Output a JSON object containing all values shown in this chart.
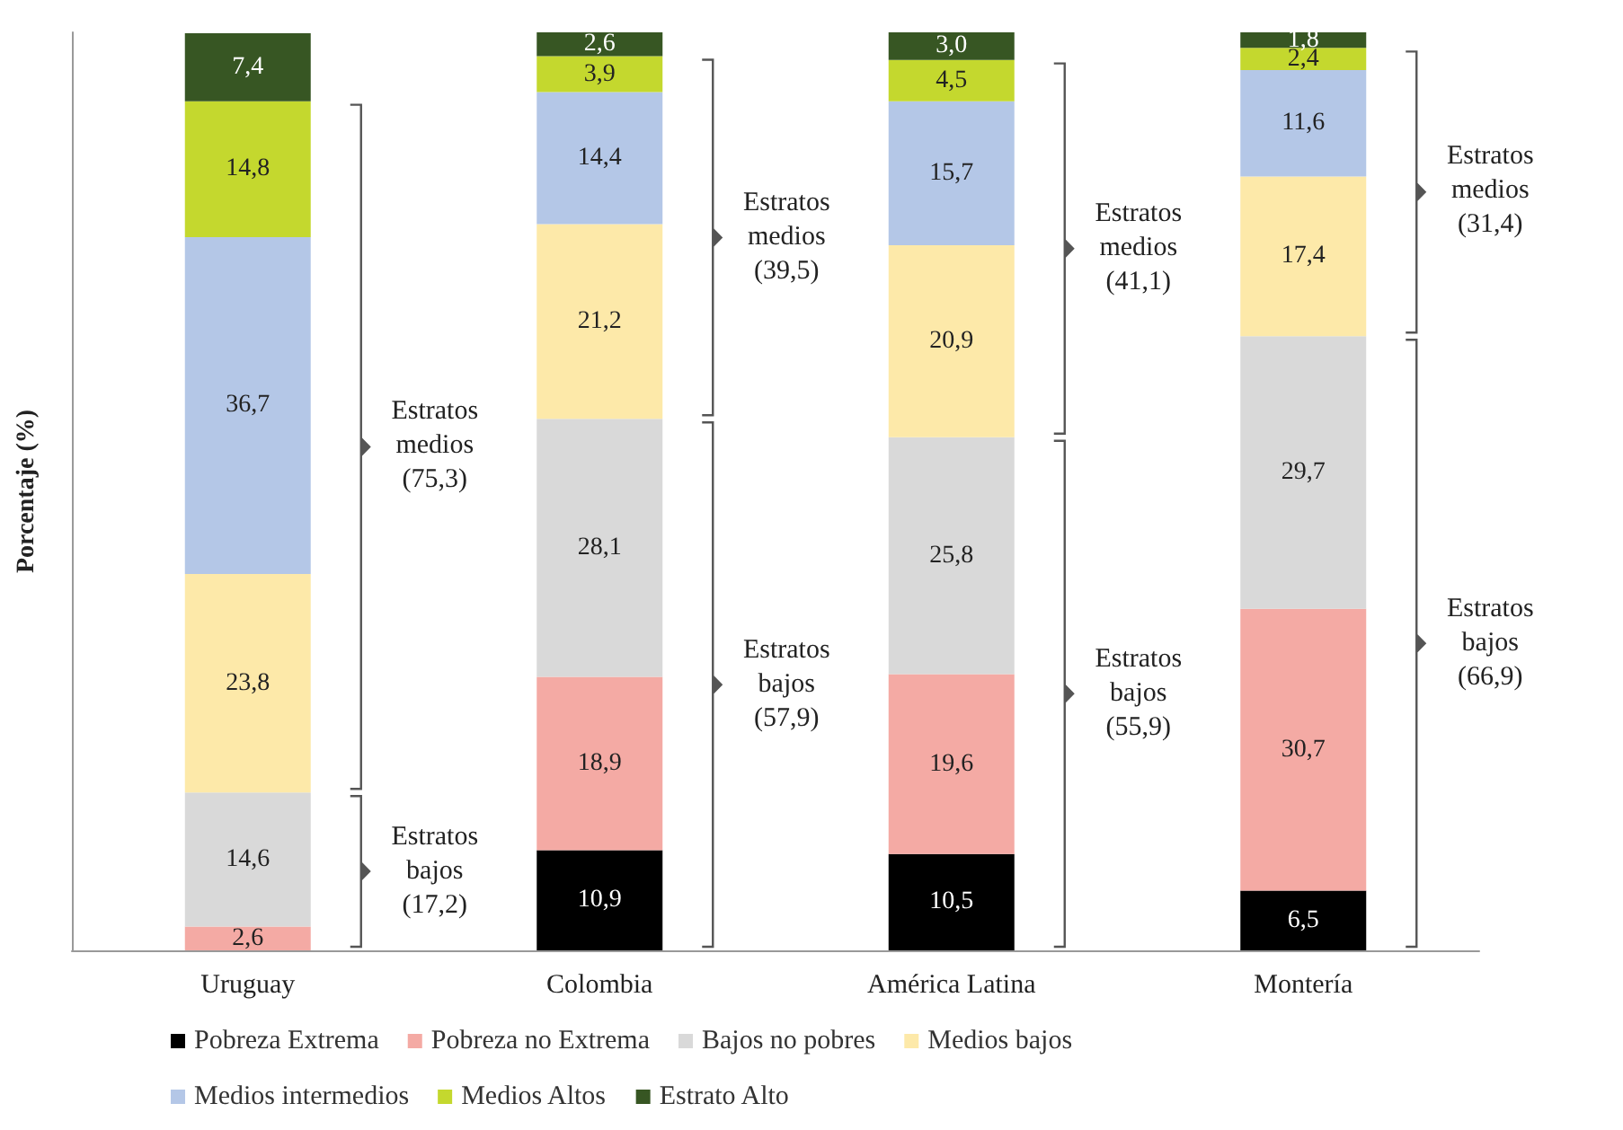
{
  "chart_data": {
    "type": "bar",
    "stacked": true,
    "ylabel": "Porcentaje (%)",
    "categories": [
      "Uruguay",
      "Colombia",
      "América Latina",
      "Montería"
    ],
    "ylim": [
      0,
      100
    ],
    "tick_labels": "x",
    "legend": "bottom",
    "grid": false,
    "series": [
      {
        "name": "Pobreza Extrema",
        "color": "#000000",
        "values": [
          null,
          10.9,
          10.5,
          6.5
        ],
        "value_labels": [
          null,
          "10,9",
          "10,5",
          "6,5"
        ]
      },
      {
        "name": "Pobreza no Extrema",
        "color": "#f4aaa4",
        "values": [
          2.6,
          18.9,
          19.6,
          30.7
        ],
        "value_labels": [
          "2,6",
          "18,9",
          "19,6",
          "30,7"
        ]
      },
      {
        "name": "Bajos no pobres",
        "color": "#d9d9d9",
        "values": [
          14.6,
          28.1,
          25.8,
          29.7
        ],
        "value_labels": [
          "14,6",
          "28,1",
          "25,8",
          "29,7"
        ]
      },
      {
        "name": "Medios bajos",
        "color": "#fde9a9",
        "values": [
          23.8,
          21.2,
          20.9,
          17.4
        ],
        "value_labels": [
          "23,8",
          "21,2",
          "20,9",
          "17,4"
        ]
      },
      {
        "name": "Medios intermedios",
        "color": "#b4c7e7",
        "values": [
          36.7,
          14.4,
          15.7,
          11.6
        ],
        "value_labels": [
          "36,7",
          "14,4",
          "15,7",
          "11,6"
        ]
      },
      {
        "name": "Medios Altos",
        "color": "#c4d82e",
        "values": [
          14.8,
          3.9,
          4.5,
          2.4
        ],
        "value_labels": [
          "14,8",
          "3,9",
          "4,5",
          "2,4"
        ]
      },
      {
        "name": "Estrato Alto",
        "color": "#375623",
        "values": [
          7.4,
          2.6,
          3.0,
          1.8
        ],
        "value_labels": [
          "7,4",
          "2,6",
          "3,0",
          "1,8"
        ]
      }
    ],
    "annotations": [
      "Estratos medios (75,3)",
      "Estratos bajos (17,2)",
      "Estratos medios (39,5)",
      "Estratos bajos (57,9)",
      "Estratos medios (41,1)",
      "Estratos bajos (55,9)",
      "Estratos medios (31,4)",
      "Estratos bajos (66,9)"
    ]
  }
}
